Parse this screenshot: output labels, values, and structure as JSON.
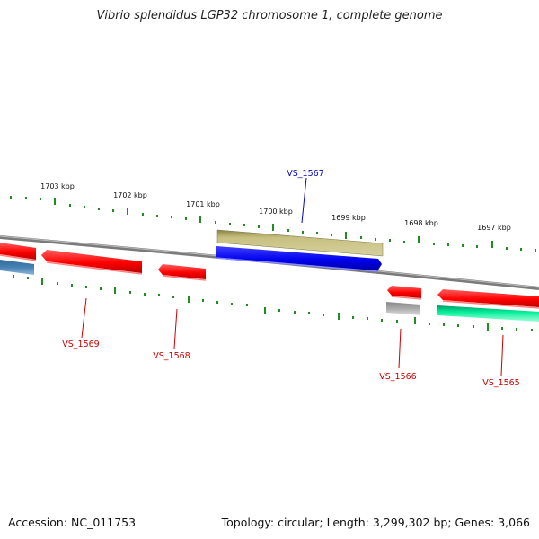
{
  "title": "Vibrio splendidus LGP32 chromosome 1, complete genome",
  "footer": {
    "accession": "Accession: NC_011753",
    "summary": "Topology: circular; Length: 3,299,302 bp; Genes: 3,066"
  },
  "colors": {
    "backbone": "#888888",
    "ticks": "#228b22",
    "label_plus": "#0000cc",
    "label_minus": "#cc0000"
  },
  "ticks": [
    "1703 kbp",
    "1702 kbp",
    "1701 kbp",
    "1700 kbp",
    "1699 kbp",
    "1698 kbp",
    "1697 kbp"
  ],
  "genes": [
    {
      "id": "VS_1567",
      "strand": "+",
      "color": "#0000ee",
      "labeled": true
    },
    {
      "id": "VS_1569",
      "strand": "-",
      "color": "#ff0000",
      "labeled": true
    },
    {
      "id": "VS_1568",
      "strand": "-",
      "color": "#ff0000",
      "labeled": true
    },
    {
      "id": "VS_1566",
      "strand": "-",
      "color": "#ff0000",
      "labeled": true
    },
    {
      "id": "VS_1565",
      "strand": "-",
      "color": "#ff0000",
      "labeled": true
    },
    {
      "id": "",
      "strand": "+",
      "color": "#b8b06a",
      "labeled": false
    },
    {
      "id": "",
      "strand": "-",
      "color": "#ff0000",
      "labeled": false
    },
    {
      "id": "",
      "strand": "-",
      "color": "#ff0000",
      "labeled": false
    },
    {
      "id": "",
      "strand": "-",
      "color": "#4682b4",
      "labeled": false
    },
    {
      "id": "",
      "strand": "-",
      "color": "#aaaaaa",
      "labeled": false
    },
    {
      "id": "",
      "strand": "-",
      "color": "#00ee99",
      "labeled": false
    }
  ]
}
